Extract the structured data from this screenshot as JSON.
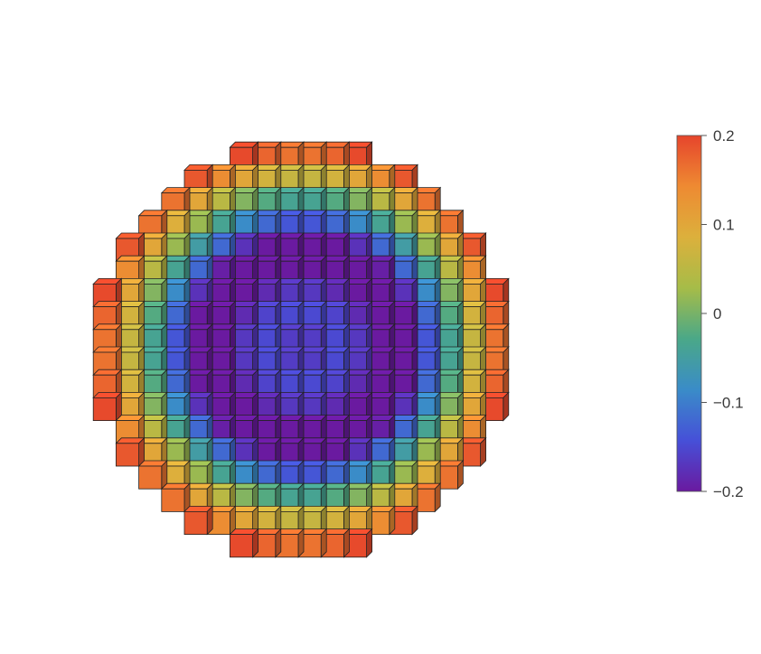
{
  "chart_data": {
    "type": "heatmap",
    "title": "",
    "xlabel": "",
    "ylabel": "",
    "value_range": [
      -0.2,
      0.2
    ],
    "grid": [
      18,
      18
    ],
    "colorbar": {
      "placement": "right",
      "ticks": [
        {
          "value": 0.2,
          "label": "0.2"
        },
        {
          "value": 0.1,
          "label": "0.1"
        },
        {
          "value": 0,
          "label": "0"
        },
        {
          "value": -0.1,
          "label": "−0.1"
        },
        {
          "value": -0.2,
          "label": "−0.2"
        }
      ]
    },
    "colormap": [
      "#6a1aa0",
      "#4650d8",
      "#3a8cc8",
      "#4aa888",
      "#a6bc48",
      "#dcb03c",
      "#ee8a32",
      "#e6452c"
    ]
  }
}
